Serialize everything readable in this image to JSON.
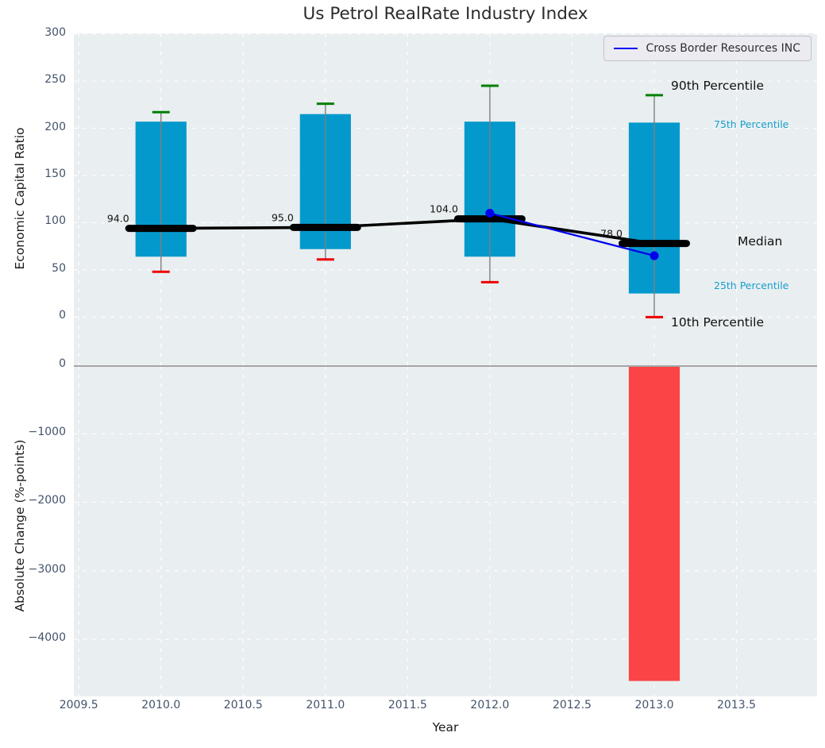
{
  "title": "Us Petrol RealRate Industry Index",
  "legend": {
    "label": "Cross Border Resources INC"
  },
  "annotations": {
    "p90": "90th Percentile",
    "p75": "75th Percentile",
    "median": "Median",
    "p25": "25th Percentile",
    "p10": "10th Percentile"
  },
  "colors": {
    "bar_blue": "#0499cc",
    "bar_red": "#ff1f1f",
    "cap_green": "#008000",
    "cap_red": "#ee0000",
    "whisker": "#7f7f7f",
    "median_black": "#000000",
    "company_blue": "#0000ee",
    "cyan_text": "#189fcd",
    "plot_bg": "#e9eef0",
    "grid": "#ffffff",
    "tick_text": "#43536b",
    "zero_line": "#a6a6a6"
  },
  "chart_data": [
    {
      "type": "boxplot",
      "title": "Us Petrol RealRate Industry Index",
      "ylabel": "Economic Capital Ratio",
      "x": [
        2010,
        2011,
        2012,
        2013
      ],
      "p90": [
        217,
        226,
        245,
        235
      ],
      "p75": [
        207,
        215,
        207,
        206
      ],
      "median": [
        94,
        95,
        104,
        78
      ],
      "p25": [
        64,
        72,
        64,
        25
      ],
      "p10": [
        48,
        61,
        37,
        0
      ],
      "median_labels": [
        "94.0",
        "95.0",
        "104.0",
        "78.0"
      ],
      "series": [
        {
          "name": "Cross Border Resources INC",
          "x": [
            2012,
            2013
          ],
          "y": [
            110,
            65
          ]
        }
      ],
      "bar_width": 0.31,
      "xlim": [
        2009.47,
        2013.99
      ],
      "ylim": [
        -51,
        300.5
      ],
      "yticks": [
        0,
        50,
        100,
        150,
        200,
        250,
        300
      ],
      "xticks": [
        2009.5,
        2010.0,
        2010.5,
        2011.0,
        2011.5,
        2012.0,
        2012.5,
        2013.0,
        2013.5
      ],
      "grid": true,
      "legend_position": "upper right"
    },
    {
      "type": "bar",
      "ylabel": "Absolute Change (%-points)",
      "xlabel": "Year",
      "x": [
        2013
      ],
      "values": [
        -4610
      ],
      "bar_width": 0.31,
      "xlim": [
        2009.47,
        2013.99
      ],
      "ylim": [
        -4835,
        0
      ],
      "yticks": [
        0,
        -1000,
        -2000,
        -3000,
        -4000
      ],
      "xticks": [
        2009.5,
        2010.0,
        2010.5,
        2011.0,
        2011.5,
        2012.0,
        2012.5,
        2013.0,
        2013.5
      ],
      "grid": true
    }
  ]
}
